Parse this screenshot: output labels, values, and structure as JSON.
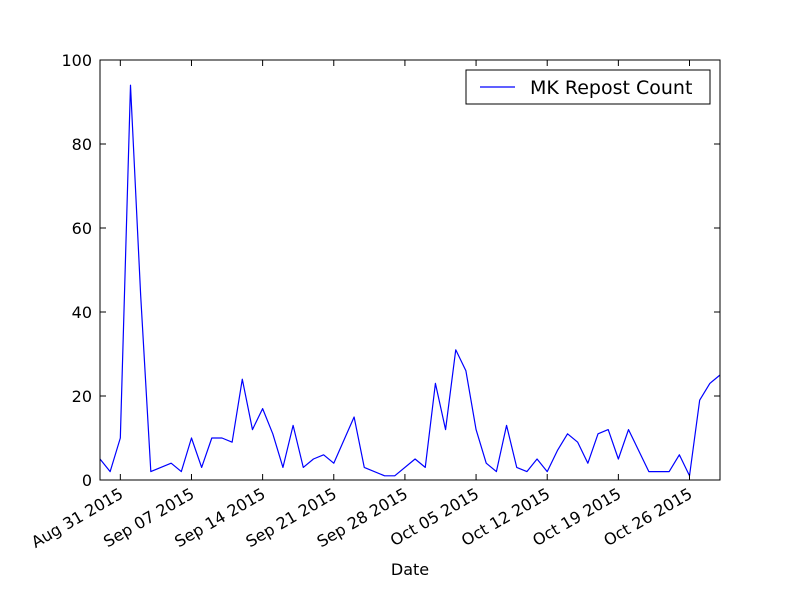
{
  "chart_data": {
    "type": "line",
    "title": "",
    "xlabel": "Date",
    "ylabel": "",
    "ylim": [
      0,
      100
    ],
    "xlim": [
      "2015-08-29",
      "2015-10-29"
    ],
    "grid": false,
    "legend_position": "top-right",
    "y_ticks": [
      "0",
      "20",
      "40",
      "60",
      "80",
      "100"
    ],
    "x_ticks": [
      {
        "date": "2015-08-31",
        "label": "Aug 31 2015"
      },
      {
        "date": "2015-09-07",
        "label": "Sep 07 2015"
      },
      {
        "date": "2015-09-14",
        "label": "Sep 14 2015"
      },
      {
        "date": "2015-09-21",
        "label": "Sep 21 2015"
      },
      {
        "date": "2015-09-28",
        "label": "Sep 28 2015"
      },
      {
        "date": "2015-10-05",
        "label": "Oct 05 2015"
      },
      {
        "date": "2015-10-12",
        "label": "Oct 12 2015"
      },
      {
        "date": "2015-10-19",
        "label": "Oct 19 2015"
      },
      {
        "date": "2015-10-26",
        "label": "Oct 26 2015"
      }
    ],
    "series": [
      {
        "name": "MK Repost Count",
        "color": "#0000ff",
        "points": [
          [
            "2015-08-29",
            5
          ],
          [
            "2015-08-30",
            2
          ],
          [
            "2015-08-31",
            10
          ],
          [
            "2015-09-01",
            94
          ],
          [
            "2015-09-02",
            44
          ],
          [
            "2015-09-03",
            2
          ],
          [
            "2015-09-05",
            4
          ],
          [
            "2015-09-06",
            2
          ],
          [
            "2015-09-07",
            10
          ],
          [
            "2015-09-08",
            3
          ],
          [
            "2015-09-09",
            10
          ],
          [
            "2015-09-10",
            10
          ],
          [
            "2015-09-11",
            9
          ],
          [
            "2015-09-12",
            24
          ],
          [
            "2015-09-13",
            12
          ],
          [
            "2015-09-14",
            17
          ],
          [
            "2015-09-15",
            11
          ],
          [
            "2015-09-16",
            3
          ],
          [
            "2015-09-17",
            13
          ],
          [
            "2015-09-18",
            3
          ],
          [
            "2015-09-19",
            5
          ],
          [
            "2015-09-20",
            6
          ],
          [
            "2015-09-21",
            4
          ],
          [
            "2015-09-23",
            15
          ],
          [
            "2015-09-24",
            3
          ],
          [
            "2015-09-26",
            1
          ],
          [
            "2015-09-27",
            1
          ],
          [
            "2015-09-29",
            5
          ],
          [
            "2015-09-30",
            3
          ],
          [
            "2015-10-01",
            23
          ],
          [
            "2015-10-02",
            12
          ],
          [
            "2015-10-03",
            31
          ],
          [
            "2015-10-04",
            26
          ],
          [
            "2015-10-05",
            12
          ],
          [
            "2015-10-06",
            4
          ],
          [
            "2015-10-07",
            2
          ],
          [
            "2015-10-08",
            13
          ],
          [
            "2015-10-09",
            3
          ],
          [
            "2015-10-10",
            2
          ],
          [
            "2015-10-11",
            5
          ],
          [
            "2015-10-12",
            2
          ],
          [
            "2015-10-13",
            7
          ],
          [
            "2015-10-14",
            11
          ],
          [
            "2015-10-15",
            9
          ],
          [
            "2015-10-16",
            4
          ],
          [
            "2015-10-17",
            11
          ],
          [
            "2015-10-18",
            12
          ],
          [
            "2015-10-19",
            5
          ],
          [
            "2015-10-20",
            12
          ],
          [
            "2015-10-22",
            2
          ],
          [
            "2015-10-24",
            2
          ],
          [
            "2015-10-25",
            6
          ],
          [
            "2015-10-26",
            1
          ],
          [
            "2015-10-27",
            19
          ],
          [
            "2015-10-28",
            23
          ],
          [
            "2015-10-29",
            25
          ]
        ]
      }
    ]
  }
}
